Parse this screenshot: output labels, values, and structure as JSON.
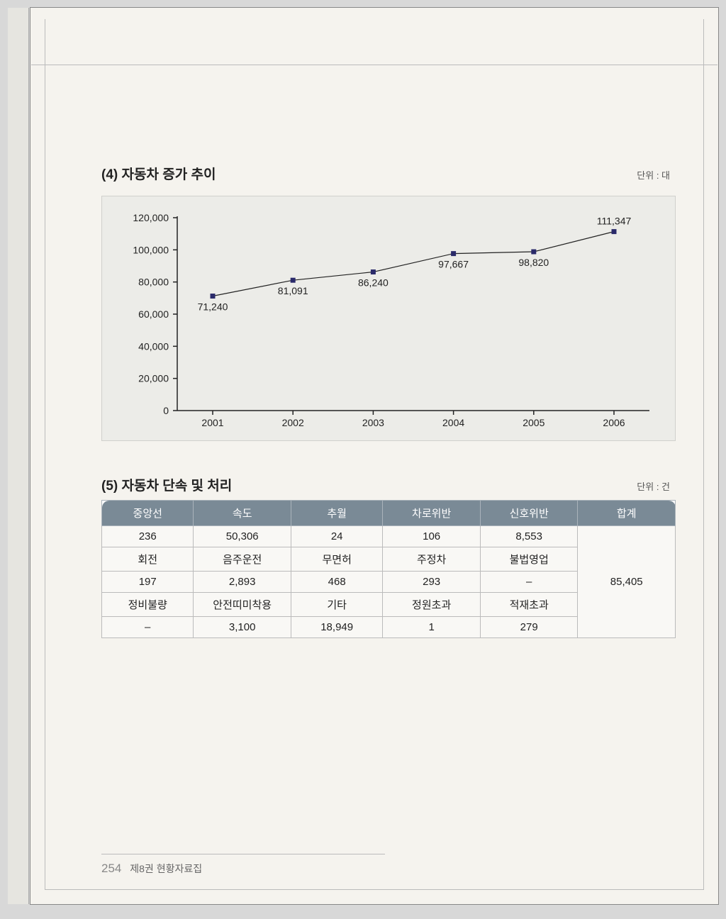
{
  "chart_section": {
    "title": "(4) 자동차 증가 추이",
    "unit": "단위 : 대",
    "chart": {
      "type": "line",
      "x_labels": [
        "2001",
        "2002",
        "2003",
        "2004",
        "2005",
        "2006"
      ],
      "values": [
        71240,
        81091,
        86240,
        97667,
        98820,
        111347
      ],
      "value_labels": [
        "71,240",
        "81,091",
        "86,240",
        "97,667",
        "98,820",
        "111,347"
      ],
      "y_ticks": [
        0,
        20000,
        40000,
        60000,
        80000,
        100000,
        120000
      ],
      "y_tick_labels": [
        "0",
        "20,000",
        "40,000",
        "60,000",
        "80,000",
        "100,000",
        "120,000"
      ],
      "ylim": [
        0,
        120000
      ],
      "marker_color": "#2a2a6a",
      "marker_size": 6,
      "line_color": "#222222",
      "line_width": 1.2,
      "axis_color": "#222222",
      "background_color": "#ecece8",
      "tick_fontsize": 14,
      "label_fontsize": 14
    }
  },
  "table_section": {
    "title": "(5) 자동차 단속 및 처리",
    "unit": "단위 : 건",
    "headers": [
      "중앙선",
      "속도",
      "추월",
      "차로위반",
      "신호위반",
      "합계"
    ],
    "rows": [
      [
        "236",
        "50,306",
        "24",
        "106",
        "8,553"
      ],
      [
        "회전",
        "음주운전",
        "무면허",
        "주정차",
        "불법영업"
      ],
      [
        "197",
        "2,893",
        "468",
        "293",
        "–"
      ],
      [
        "정비불량",
        "안전띠미착용",
        "기타",
        "정원초과",
        "적재초과"
      ],
      [
        "–",
        "3,100",
        "18,949",
        "1",
        "279"
      ]
    ],
    "total": "85,405",
    "header_bg": "#7a8a96",
    "header_fg": "#ffffff",
    "cell_bg": "#f9f8f5",
    "border_color": "#bbbbbb"
  },
  "footer": {
    "page_number": "254",
    "book_title": "제8권 현황자료집"
  }
}
